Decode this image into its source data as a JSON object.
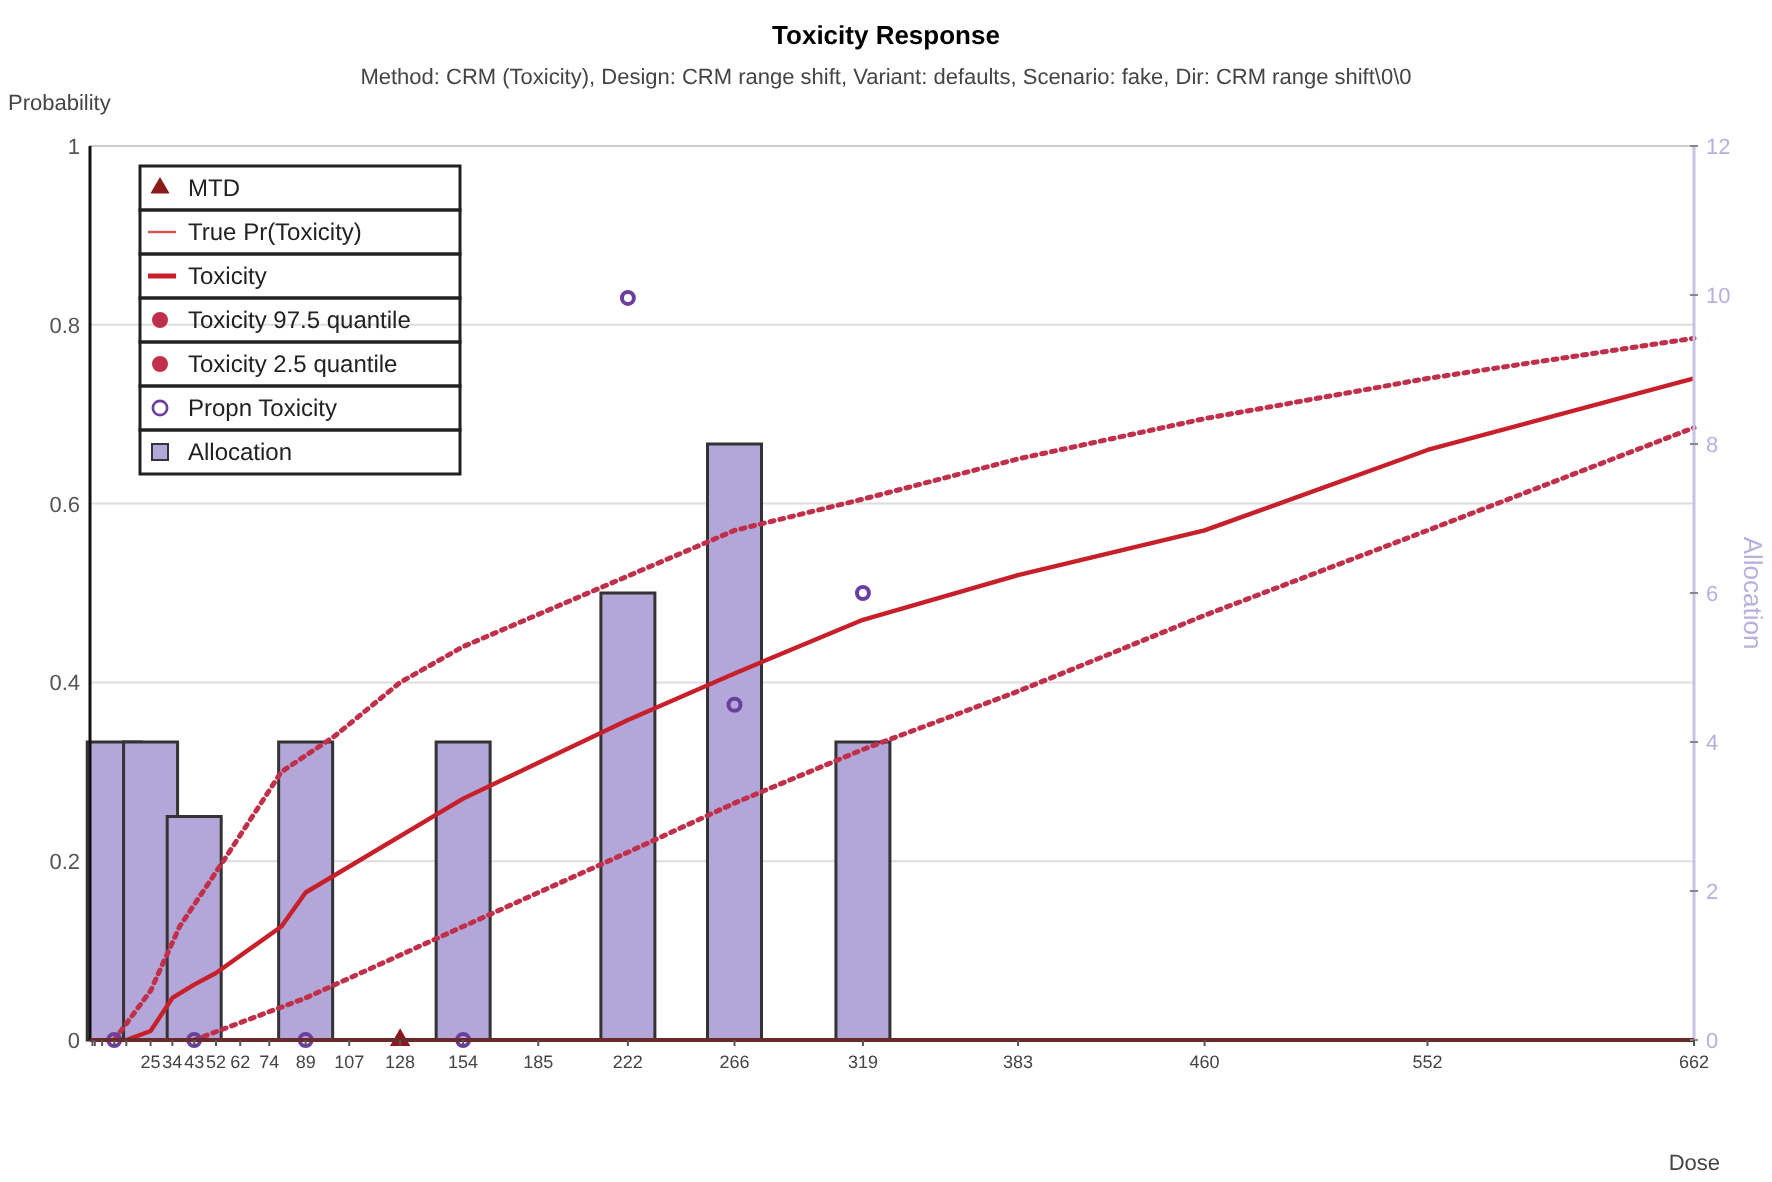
{
  "chart_data": {
    "type": "line",
    "title": "Toxicity Response",
    "subtitle": "Method: CRM (Toxicity), Design: CRM range shift, Variant: defaults, Scenario: fake, Dir: CRM range shift\\0\\0",
    "xlabel": "Dose",
    "ylabel": "Probability",
    "y2label": "Allocation",
    "xlim": [
      0,
      662
    ],
    "xticks": [
      {
        "value": 1,
        "label": null
      },
      {
        "value": 2,
        "label": null
      },
      {
        "value": 5,
        "label": null
      },
      {
        "value": 10,
        "label": null
      },
      {
        "value": 15,
        "label": null
      },
      25,
      34,
      43,
      52,
      62,
      74,
      89,
      107,
      128,
      154,
      185,
      222,
      266,
      319,
      383,
      460,
      552,
      662
    ],
    "ylim": [
      0,
      1
    ],
    "yticks": [
      0,
      0.2,
      0.4,
      0.6,
      0.8,
      1
    ],
    "y2lim": [
      0,
      12
    ],
    "y2ticks": [
      0,
      2,
      4,
      6,
      8,
      10,
      12
    ],
    "grid": "y",
    "legend": "top left",
    "series": [
      {
        "name": "MTD",
        "type": "scatter",
        "marker": "triangle",
        "color": "#8b1a1a",
        "x": [
          128
        ],
        "values": [
          0
        ]
      },
      {
        "name": "True Pr(Toxicity)",
        "color": "#d9534f"
      },
      {
        "name": "Toxicity",
        "color": "#c8202a",
        "x": [
          15,
          25,
          34,
          43,
          52,
          79,
          89,
          154,
          222,
          266,
          319,
          383,
          460,
          552,
          662
        ],
        "values": [
          0,
          0.01,
          0.047,
          0.062,
          0.075,
          0.127,
          0.165,
          0.27,
          0.358,
          0.41,
          0.47,
          0.52,
          0.57,
          0.66,
          0.74
        ]
      },
      {
        "name": "Toxicity 97.5 quantile",
        "line_style": "dotted",
        "color": "#c0304a",
        "x": [
          10,
          25,
          37,
          55,
          79,
          101,
          128,
          154,
          197,
          266,
          319,
          383,
          460,
          552,
          662
        ],
        "values": [
          0,
          0.055,
          0.127,
          0.2,
          0.3,
          0.34,
          0.4,
          0.44,
          0.49,
          0.57,
          0.605,
          0.65,
          0.695,
          0.74,
          0.785
        ]
      },
      {
        "name": "Toxicity 2.5 quantile",
        "line_style": "dotted",
        "color": "#c0304a",
        "x": [
          43,
          89,
          154,
          222,
          266,
          319,
          383,
          460,
          552,
          662
        ],
        "values": [
          0,
          0.047,
          0.127,
          0.21,
          0.265,
          0.325,
          0.39,
          0.475,
          0.57,
          0.685
        ]
      },
      {
        "name": "Propn Toxicity",
        "type": "scatter",
        "marker": "circle",
        "color": "#6a3fa0",
        "x": [
          10,
          43,
          89,
          154,
          222,
          266,
          319
        ],
        "values": [
          0,
          0,
          0,
          0,
          0.83,
          0.375,
          0.5
        ]
      },
      {
        "name": "Allocation",
        "type": "bar",
        "axis": "y2",
        "color": "#b3a6d8",
        "x": [
          10,
          25,
          43,
          89,
          154,
          222,
          266,
          319
        ],
        "values": [
          4,
          4,
          3,
          4,
          4,
          6,
          8,
          4
        ]
      }
    ]
  }
}
